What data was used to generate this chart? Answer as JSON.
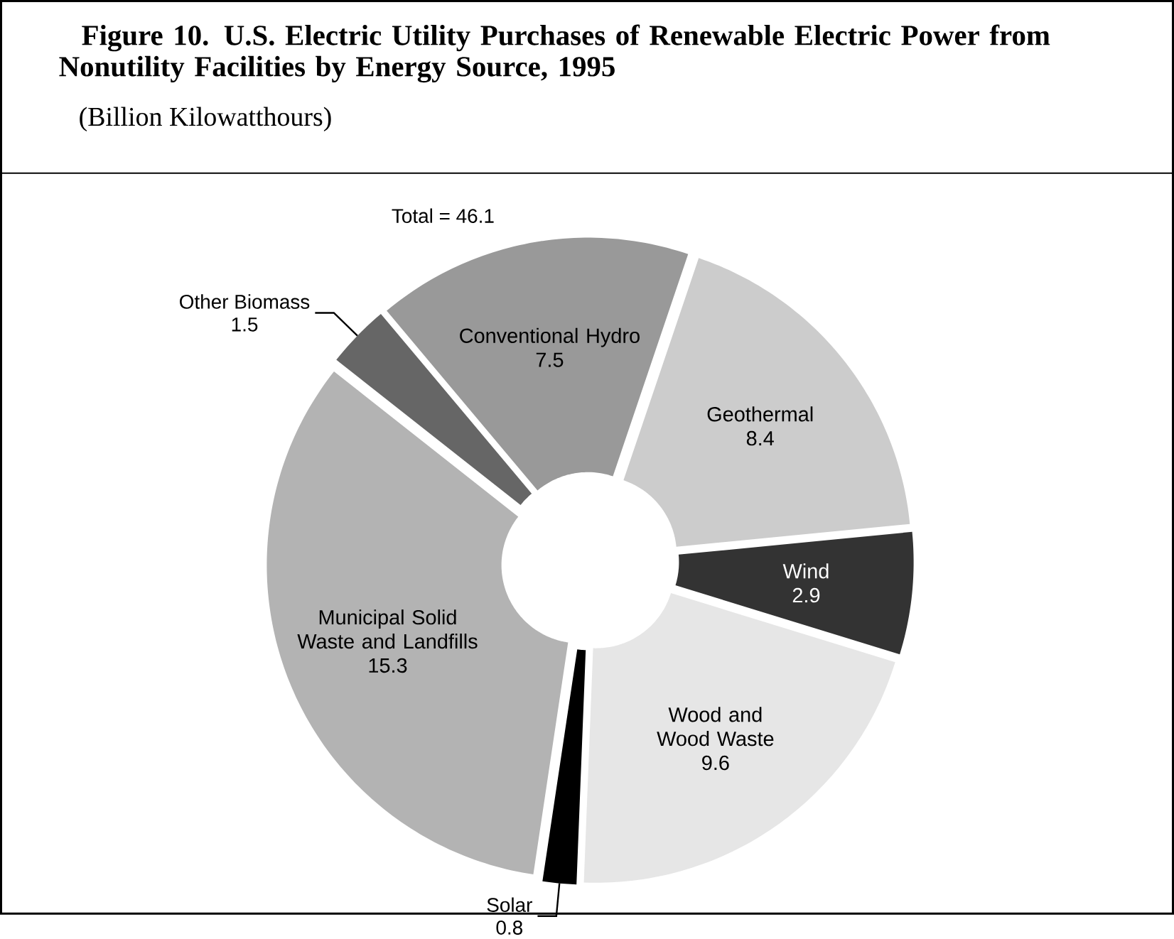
{
  "chart_data": {
    "type": "donut",
    "title": "Figure 10. U.S. Electric Utility Purchases of Renewable Electric Power from Nonutility Facilities by Energy Source, 1995",
    "subtitle": "(Billion Kilowatthours)",
    "annotations": [
      "Total = 46.1"
    ],
    "categories": [
      "Conventional Hydro",
      "Geothermal",
      "Wind",
      "Wood and Wood Waste",
      "Solar",
      "Municipal Solid Waste and Landfills",
      "Other Biomass"
    ],
    "values": [
      7.5,
      8.4,
      2.9,
      9.6,
      0.8,
      15.3,
      1.5
    ],
    "colors": [
      "#999999",
      "#cccccc",
      "#333333",
      "#e6e6e6",
      "#000000",
      "#b3b3b3",
      "#666666"
    ],
    "data_labels": true
  }
}
